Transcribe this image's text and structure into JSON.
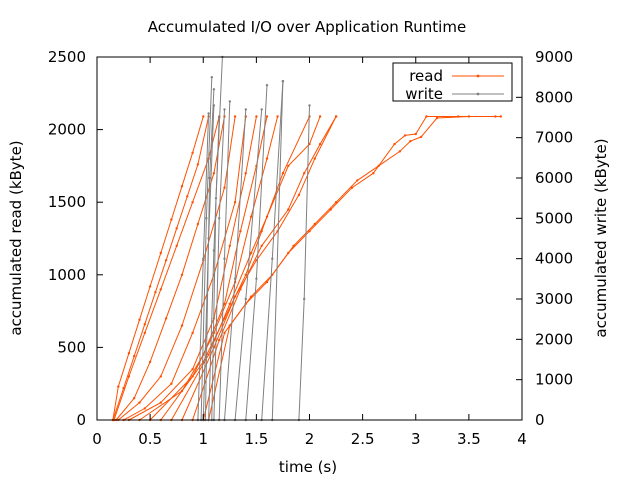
{
  "chart_data": {
    "type": "line",
    "title": "Accumulated I/O over Application Runtime",
    "xlabel": "time (s)",
    "ylabel": "accumulated read  (kByte)",
    "y2label": "accumulated write (kByte)",
    "xlim": [
      0,
      4
    ],
    "ylim": [
      0,
      2500
    ],
    "y2lim": [
      0,
      9000
    ],
    "x_ticks": [
      0,
      0.5,
      1,
      1.5,
      2,
      2.5,
      3,
      3.5,
      4
    ],
    "x_tick_labels": [
      "0",
      "0.5",
      "1",
      "1.5",
      "2",
      "2.5",
      "3",
      "3.5",
      "4"
    ],
    "y_ticks": [
      0,
      500,
      1000,
      1500,
      2000,
      2500
    ],
    "y_tick_labels": [
      "0",
      "500",
      "1000",
      "1500",
      "2000",
      "2500"
    ],
    "y2_ticks": [
      0,
      1000,
      2000,
      3000,
      4000,
      5000,
      6000,
      7000,
      8000,
      9000
    ],
    "y2_tick_labels": [
      "0",
      "1000",
      "2000",
      "3000",
      "4000",
      "5000",
      "6000",
      "7000",
      "8000",
      "9000"
    ],
    "grid": false,
    "legend_position": "top-right",
    "legend": [
      {
        "label": "read",
        "color": "#ff5000"
      },
      {
        "label": "write",
        "color": "#808080"
      }
    ],
    "series": [
      {
        "name": "read",
        "axis": "left",
        "color": "#ff5000",
        "lines": [
          {
            "x": [
              0.15,
              0.2,
              0.3,
              0.4,
              0.5,
              0.6,
              0.7,
              0.8,
              0.9,
              1.0
            ],
            "y": [
              0,
              230,
              460,
              690,
              920,
              1150,
              1380,
              1610,
              1840,
              2090
            ]
          },
          {
            "x": [
              0.15,
              0.25,
              0.35,
              0.45,
              0.55,
              0.65,
              0.75,
              0.85,
              0.95,
              1.05
            ],
            "y": [
              0,
              220,
              440,
              660,
              880,
              1100,
              1320,
              1540,
              1760,
              2090
            ]
          },
          {
            "x": [
              0.16,
              0.3,
              0.45,
              0.6,
              0.75,
              0.9,
              1.05,
              1.15
            ],
            "y": [
              0,
              300,
              600,
              900,
              1200,
              1500,
              1800,
              2090
            ]
          },
          {
            "x": [
              0.18,
              0.35,
              0.5,
              0.65,
              0.8,
              0.95,
              1.1,
              1.2
            ],
            "y": [
              0,
              150,
              400,
              700,
              1000,
              1350,
              1700,
              2090
            ]
          },
          {
            "x": [
              0.2,
              0.4,
              0.6,
              0.8,
              1.0,
              1.2,
              1.3
            ],
            "y": [
              0,
              120,
              300,
              650,
              1100,
              1600,
              2090
            ]
          },
          {
            "x": [
              0.25,
              0.45,
              0.7,
              0.9,
              1.1,
              1.3,
              1.4
            ],
            "y": [
              0,
              80,
              250,
              600,
              1000,
              1500,
              2090
            ]
          },
          {
            "x": [
              0.3,
              0.6,
              0.9,
              1.1,
              1.25,
              1.4,
              1.5
            ],
            "y": [
              0,
              120,
              350,
              700,
              1200,
              1700,
              2090
            ]
          },
          {
            "x": [
              0.4,
              0.8,
              1.0,
              1.2,
              1.35,
              1.5,
              1.6
            ],
            "y": [
              0,
              200,
              450,
              800,
              1300,
              1750,
              2090
            ]
          },
          {
            "x": [
              0.5,
              0.9,
              1.1,
              1.3,
              1.45,
              1.6,
              1.7
            ],
            "y": [
              0,
              300,
              600,
              950,
              1400,
              1800,
              2090
            ]
          },
          {
            "x": [
              0.6,
              1.0,
              1.2,
              1.4,
              1.55,
              1.75,
              2.0
            ],
            "y": [
              0,
              400,
              700,
              1000,
              1300,
              1700,
              2090
            ]
          },
          {
            "x": [
              0.7,
              1.05,
              1.25,
              1.45,
              1.6,
              1.8,
              2.0,
              2.1
            ],
            "y": [
              0,
              450,
              800,
              1150,
              1400,
              1750,
              1900,
              2090
            ]
          },
          {
            "x": [
              0.8,
              1.1,
              1.3,
              1.5,
              1.7,
              1.9,
              2.05,
              2.25
            ],
            "y": [
              0,
              500,
              850,
              1100,
              1300,
              1550,
              1800,
              2090
            ]
          },
          {
            "x": [
              0.9,
              1.15,
              1.35,
              1.55,
              1.8,
              1.95,
              2.1,
              2.25
            ],
            "y": [
              0,
              550,
              900,
              1200,
              1450,
              1700,
              1900,
              2090
            ]
          },
          {
            "x": [
              1.0,
              1.2,
              1.4,
              1.6,
              1.8,
              2.0,
              2.2,
              2.4,
              2.6,
              2.8,
              2.9,
              3.0,
              3.1,
              3.4,
              3.8
            ],
            "y": [
              0,
              600,
              800,
              950,
              1150,
              1300,
              1450,
              1600,
              1700,
              1900,
              1960,
              1970,
              2090,
              2090,
              2090
            ]
          },
          {
            "x": [
              1.05,
              1.25,
              1.45,
              1.65,
              1.85,
              2.05,
              2.25,
              2.45,
              2.65,
              2.85,
              2.95,
              3.05,
              3.2,
              3.5,
              3.75
            ],
            "y": [
              0,
              650,
              850,
              1000,
              1200,
              1350,
              1500,
              1650,
              1750,
              1850,
              1920,
              1950,
              2080,
              2090,
              2090
            ]
          }
        ]
      },
      {
        "name": "write",
        "axis": "right",
        "color": "#808080",
        "lines": [
          {
            "x": [
              0.95,
              1.0,
              1.05
            ],
            "y": [
              0,
              4000,
              7600
            ]
          },
          {
            "x": [
              0.98,
              1.03,
              1.08
            ],
            "y": [
              0,
              5000,
              8500
            ]
          },
          {
            "x": [
              1.0,
              1.05,
              1.1
            ],
            "y": [
              0,
              4500,
              7800
            ]
          },
          {
            "x": [
              1.02,
              1.06,
              1.1
            ],
            "y": [
              0,
              6000,
              8200
            ]
          },
          {
            "x": [
              1.05,
              1.1,
              1.15
            ],
            "y": [
              0,
              4200,
              7500
            ]
          },
          {
            "x": [
              1.08,
              1.12,
              1.18
            ],
            "y": [
              0,
              5500,
              9000
            ]
          },
          {
            "x": [
              1.1,
              1.15,
              1.2
            ],
            "y": [
              0,
              5000,
              7700
            ]
          },
          {
            "x": [
              1.15,
              1.2,
              1.25
            ],
            "y": [
              0,
              4000,
              7900
            ]
          },
          {
            "x": [
              1.2,
              1.3,
              1.4
            ],
            "y": [
              0,
              3500,
              7700
            ]
          },
          {
            "x": [
              1.3,
              1.4,
              1.55
            ],
            "y": [
              0,
              3000,
              7700
            ]
          },
          {
            "x": [
              1.4,
              1.5,
              1.6
            ],
            "y": [
              0,
              3500,
              8300
            ]
          },
          {
            "x": [
              1.55,
              1.65,
              1.75
            ],
            "y": [
              0,
              4000,
              8400
            ]
          },
          {
            "x": [
              1.65,
              1.75
            ],
            "y": [
              0,
              8400
            ]
          },
          {
            "x": [
              1.9,
              1.95,
              2.0
            ],
            "y": [
              0,
              3000,
              7800
            ]
          }
        ]
      }
    ]
  }
}
